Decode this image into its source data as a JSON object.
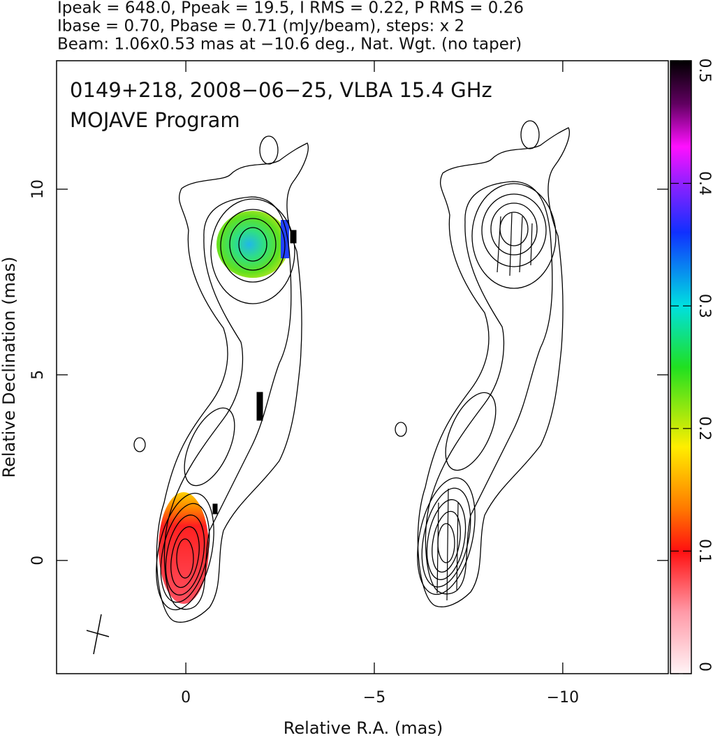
{
  "chart_data": {
    "type": "contour",
    "header_lines": [
      "Ipeak = 648.0, Ppeak = 19.5, I RMS = 0.22, P RMS = 0.26",
      "Ibase = 0.70, Pbase = 0.71 (mJy/beam), steps: x 2",
      "Beam: 1.06x0.53 mas at −10.6 deg., Nat. Wgt. (no taper)"
    ],
    "annotations": [
      "0149+218, 2008−06−25, VLBA 15.4 GHz",
      "MOJAVE Program"
    ],
    "xlabel": "Relative R.A. (mas)",
    "ylabel": "Relative Declination (mas)",
    "xlim": [
      3.43,
      -12.8
    ],
    "ylim": [
      -3.05,
      13.46
    ],
    "xticks": [
      0,
      {
        "value": -5,
        "label": "−5"
      },
      {
        "value": -10,
        "label": "−10"
      }
    ],
    "yticks": [
      0,
      5,
      10
    ],
    "colorbar": {
      "lim": [
        0,
        0.5
      ],
      "ticks": [
        0,
        0.1,
        0.2,
        0.3,
        0.4,
        0.5
      ]
    }
  }
}
